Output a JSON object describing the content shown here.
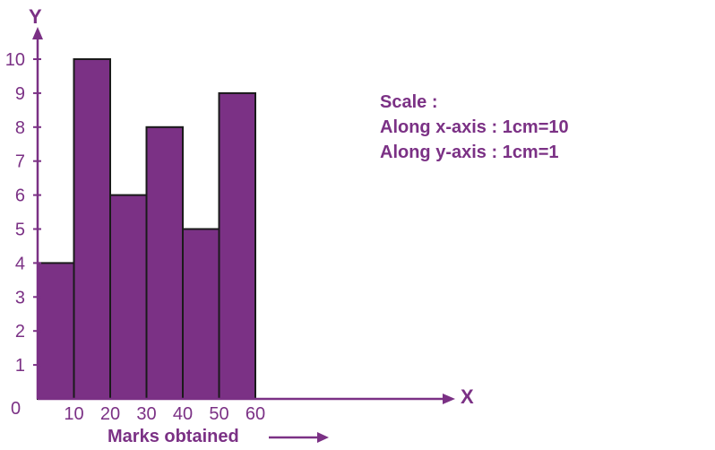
{
  "chart_data": {
    "type": "bar",
    "histogram": true,
    "bins": [
      [
        0,
        10
      ],
      [
        10,
        20
      ],
      [
        20,
        30
      ],
      [
        30,
        40
      ],
      [
        40,
        50
      ],
      [
        50,
        60
      ]
    ],
    "values": [
      4,
      10,
      6,
      8,
      5,
      9
    ],
    "xticks": [
      "10",
      "20",
      "30",
      "40",
      "50",
      "60"
    ],
    "yticks": [
      "1",
      "2",
      "3",
      "4",
      "5",
      "6",
      "7",
      "8",
      "9",
      "10"
    ],
    "origin_label": "0",
    "xlabel": "Marks obtained",
    "x_axis_letter": "X",
    "y_axis_letter": "Y",
    "xlim": [
      0,
      60
    ],
    "ylim": [
      0,
      10
    ],
    "grid": false
  },
  "scale_note": {
    "heading": "Scale :",
    "x_line": "Along x-axis : 1cm=10",
    "y_line": "Along y-axis : 1cm=1"
  },
  "colors": {
    "bar_fill": "#7b3185",
    "bar_stroke": "#1a1a1a",
    "axis": "#7b3185",
    "text": "#7b3185"
  }
}
